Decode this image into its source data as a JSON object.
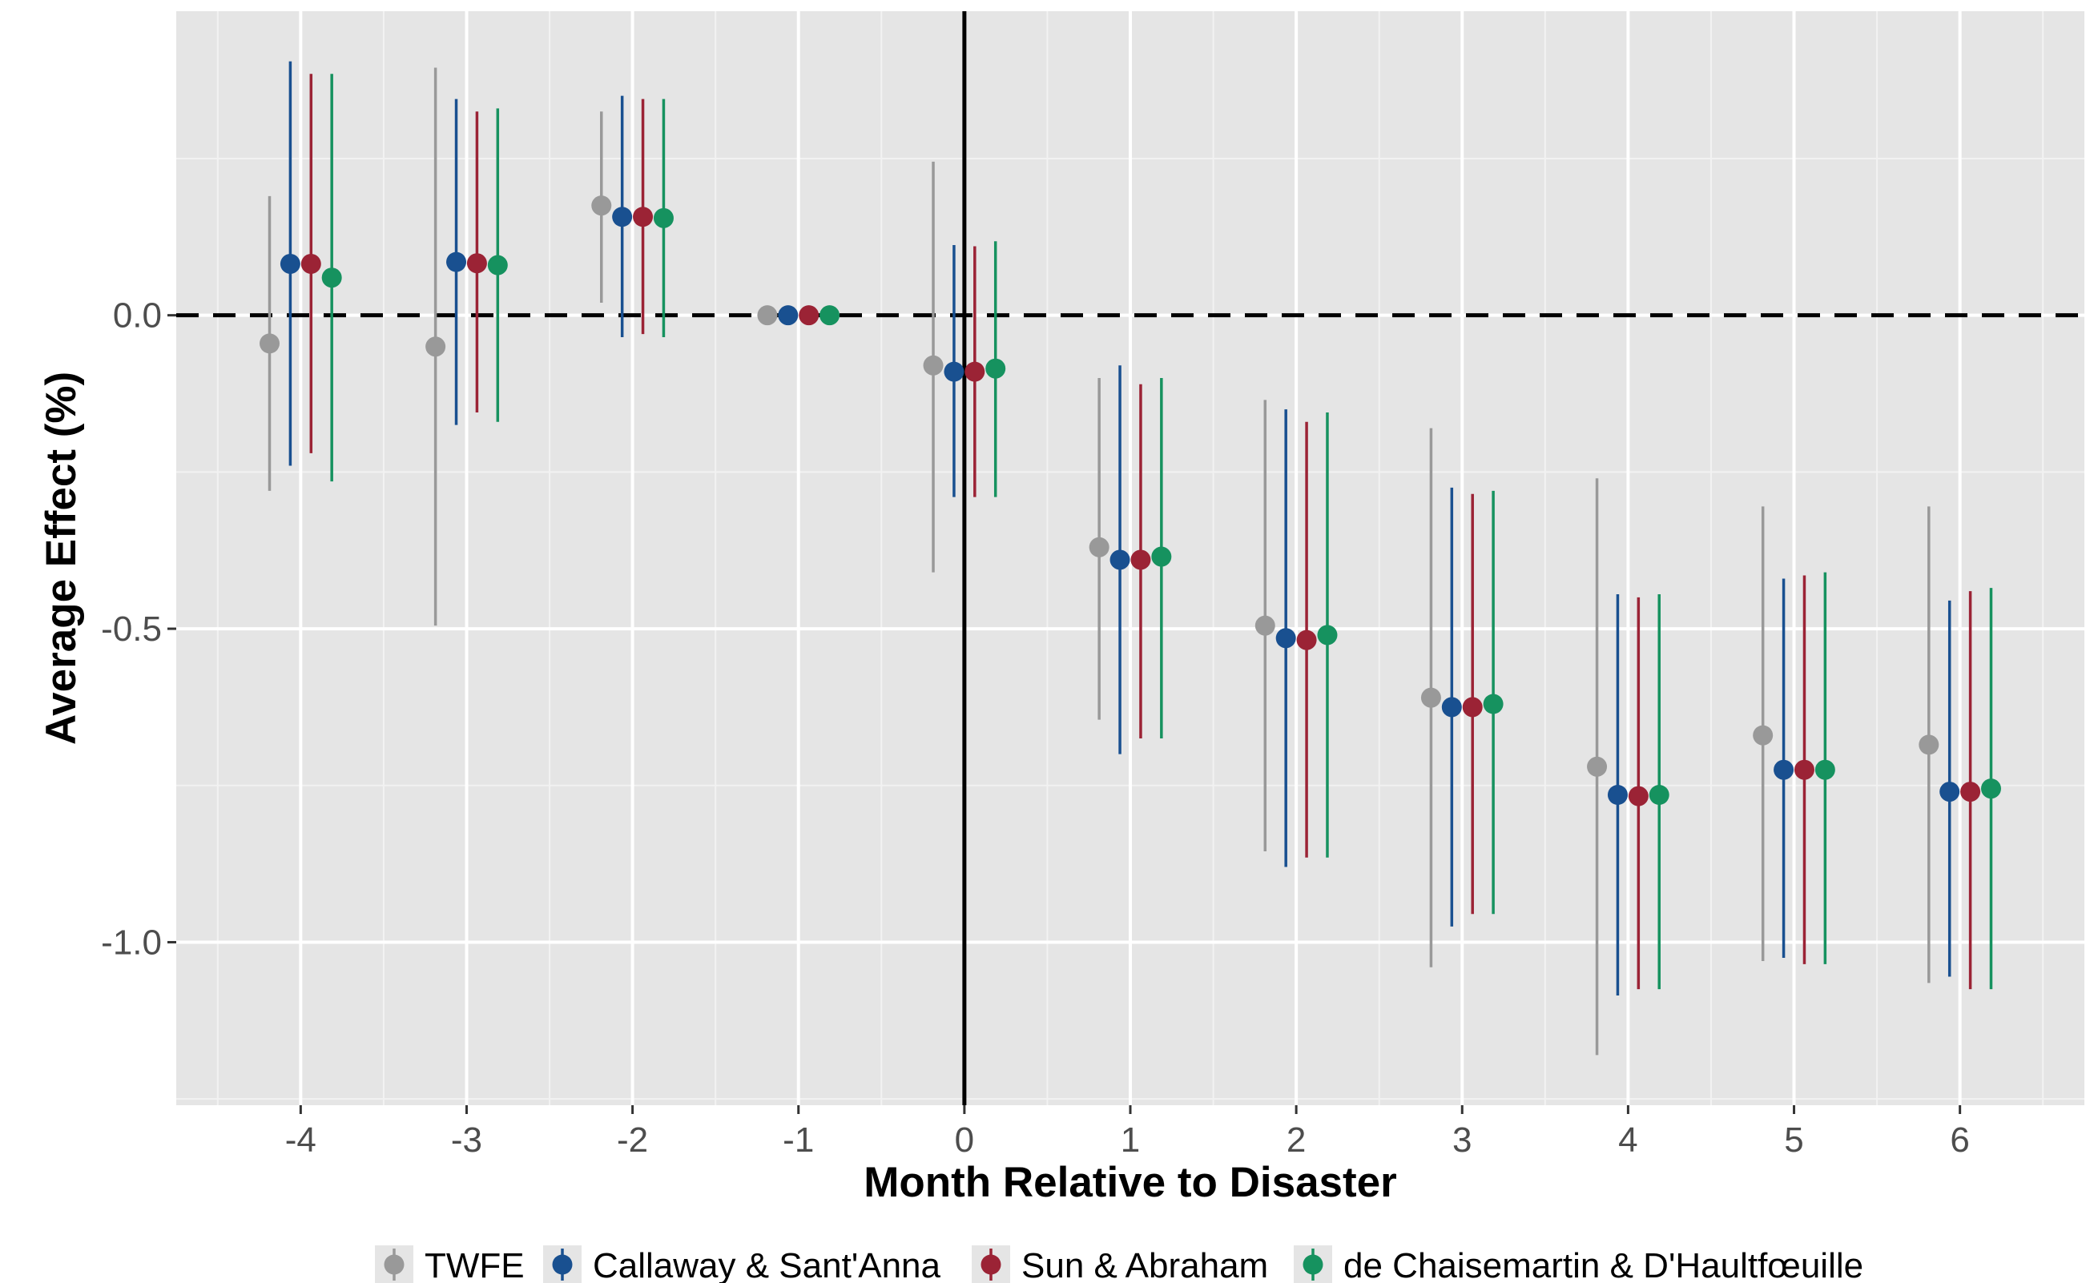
{
  "chart_data": {
    "type": "scatter",
    "subtype": "event-study point estimates with confidence intervals",
    "title": "",
    "xlabel": "Month Relative to Disaster",
    "ylabel": "Average Effect (%)",
    "x": [
      -4,
      -3,
      -2,
      -1,
      0,
      1,
      2,
      3,
      4,
      5,
      6
    ],
    "x_tick_labels": [
      "-4",
      "-3",
      "-2",
      "-1",
      "0",
      "1",
      "2",
      "3",
      "4",
      "5",
      "6"
    ],
    "y_ticks": [
      0.0,
      -0.5,
      -1.0
    ],
    "y_tick_labels": [
      "0.0",
      "-0.5",
      "-1.0"
    ],
    "xlim": [
      -4.75,
      6.75
    ],
    "ylim": [
      -1.26,
      0.485
    ],
    "reference_lines": {
      "horizontal_dashed_y": 0,
      "vertical_solid_x": 0
    },
    "grid": true,
    "legend_position": "bottom",
    "series": [
      {
        "name": "TWFE",
        "color": "#999999",
        "estimate": [
          -0.045,
          -0.05,
          0.175,
          0.0,
          -0.08,
          -0.37,
          -0.495,
          -0.61,
          -0.72,
          -0.67,
          -0.685
        ],
        "ci_low": [
          -0.28,
          -0.495,
          0.02,
          0.0,
          -0.41,
          -0.645,
          -0.855,
          -1.04,
          -1.18,
          -1.03,
          -1.065
        ],
        "ci_high": [
          0.19,
          0.395,
          0.325,
          0.0,
          0.245,
          -0.1,
          -0.135,
          -0.18,
          -0.26,
          -0.305,
          -0.305
        ]
      },
      {
        "name": "Callaway & Sant'Anna",
        "color": "#195090",
        "estimate": [
          0.082,
          0.085,
          0.157,
          0.0,
          -0.09,
          -0.39,
          -0.515,
          -0.625,
          -0.765,
          -0.725,
          -0.76
        ],
        "ci_low": [
          -0.24,
          -0.175,
          -0.035,
          0.0,
          -0.29,
          -0.7,
          -0.88,
          -0.975,
          -1.085,
          -1.025,
          -1.055
        ],
        "ci_high": [
          0.405,
          0.345,
          0.35,
          0.0,
          0.112,
          -0.08,
          -0.15,
          -0.275,
          -0.445,
          -0.42,
          -0.455
        ]
      },
      {
        "name": "Sun & Abraham",
        "color": "#9b2335",
        "estimate": [
          0.082,
          0.083,
          0.157,
          0.0,
          -0.09,
          -0.39,
          -0.518,
          -0.625,
          -0.767,
          -0.725,
          -0.76
        ],
        "ci_low": [
          -0.22,
          -0.155,
          -0.03,
          0.0,
          -0.29,
          -0.675,
          -0.865,
          -0.955,
          -1.075,
          -1.035,
          -1.075
        ],
        "ci_high": [
          0.385,
          0.325,
          0.345,
          0.0,
          0.11,
          -0.11,
          -0.17,
          -0.285,
          -0.45,
          -0.415,
          -0.44
        ]
      },
      {
        "name": "de Chaisemartin & D'Haultfœuille",
        "color": "#16925f",
        "estimate": [
          0.06,
          0.08,
          0.155,
          0.0,
          -0.085,
          -0.385,
          -0.51,
          -0.62,
          -0.765,
          -0.725,
          -0.755
        ],
        "ci_low": [
          -0.265,
          -0.17,
          -0.035,
          0.0,
          -0.29,
          -0.675,
          -0.865,
          -0.955,
          -1.075,
          -1.035,
          -1.075
        ],
        "ci_high": [
          0.385,
          0.33,
          0.345,
          0.0,
          0.118,
          -0.1,
          -0.155,
          -0.28,
          -0.445,
          -0.41,
          -0.435
        ]
      }
    ]
  }
}
